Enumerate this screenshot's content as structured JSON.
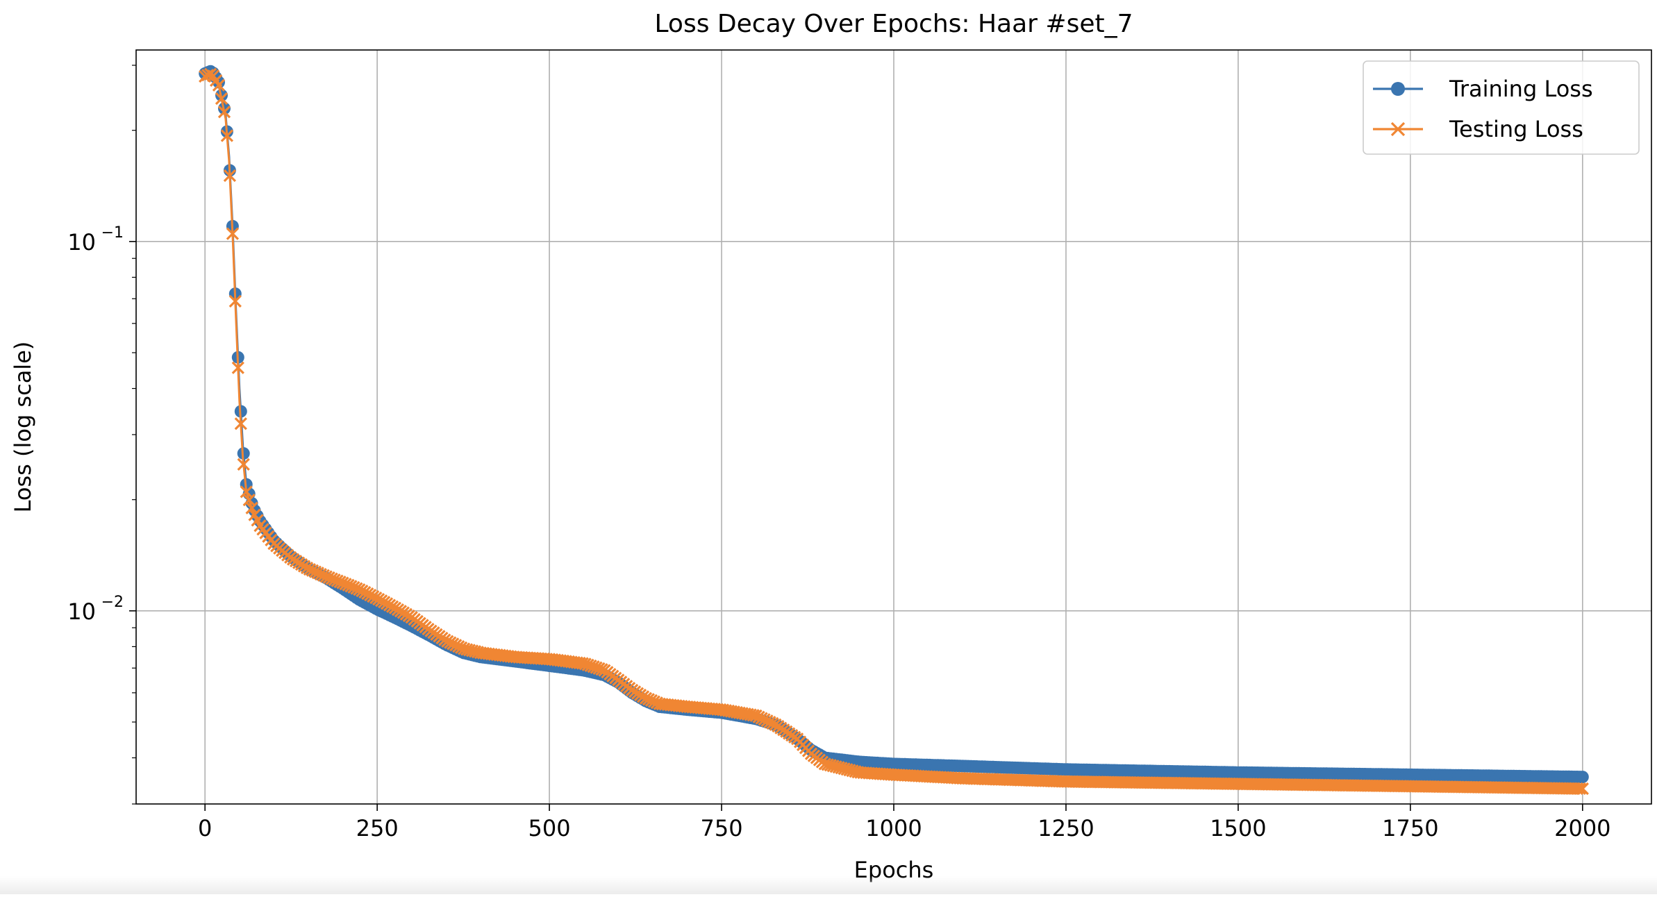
{
  "chart_data": {
    "type": "line",
    "title": "Loss Decay Over Epochs: Haar #set_7",
    "xlabel": "Epochs",
    "ylabel": "Loss (log scale)",
    "yscale": "log",
    "xlim": [
      -100,
      2100
    ],
    "ylim": [
      0.003,
      0.33
    ],
    "grid": true,
    "legend_position": "top-right",
    "x_ticks": [
      0,
      250,
      500,
      750,
      1000,
      1250,
      1500,
      1750,
      2000
    ],
    "x_tick_labels": [
      "0",
      "250",
      "500",
      "750",
      "1000",
      "1250",
      "1500",
      "1750",
      "2000"
    ],
    "y_major_ticks": [
      {
        "value": 0.1,
        "base": "10",
        "exponent": "−1"
      },
      {
        "value": 0.01,
        "base": "10",
        "exponent": "−2"
      }
    ],
    "series": [
      {
        "name": "Training Loss",
        "color": "#3a75b0",
        "marker": "circle",
        "points": [
          [
            0,
            0.285
          ],
          [
            10,
            0.29
          ],
          [
            20,
            0.27
          ],
          [
            30,
            0.22
          ],
          [
            35,
            0.17
          ],
          [
            40,
            0.11
          ],
          [
            45,
            0.065
          ],
          [
            50,
            0.04
          ],
          [
            55,
            0.028
          ],
          [
            60,
            0.022
          ],
          [
            70,
            0.019
          ],
          [
            80,
            0.0175
          ],
          [
            100,
            0.0155
          ],
          [
            125,
            0.014
          ],
          [
            150,
            0.013
          ],
          [
            175,
            0.0123
          ],
          [
            200,
            0.0115
          ],
          [
            225,
            0.0107
          ],
          [
            250,
            0.0101
          ],
          [
            275,
            0.0096
          ],
          [
            300,
            0.0091
          ],
          [
            325,
            0.0086
          ],
          [
            350,
            0.0081
          ],
          [
            375,
            0.0077
          ],
          [
            400,
            0.0075
          ],
          [
            450,
            0.0073
          ],
          [
            500,
            0.0071
          ],
          [
            550,
            0.0069
          ],
          [
            580,
            0.0067
          ],
          [
            600,
            0.0064
          ],
          [
            620,
            0.006
          ],
          [
            640,
            0.0057
          ],
          [
            660,
            0.0055
          ],
          [
            700,
            0.0054
          ],
          [
            750,
            0.0053
          ],
          [
            800,
            0.0051
          ],
          [
            830,
            0.0049
          ],
          [
            860,
            0.0045
          ],
          [
            880,
            0.0042
          ],
          [
            900,
            0.004
          ],
          [
            950,
            0.0039
          ],
          [
            1000,
            0.00385
          ],
          [
            1100,
            0.0038
          ],
          [
            1250,
            0.00372
          ],
          [
            1500,
            0.00365
          ],
          [
            1750,
            0.0036
          ],
          [
            2000,
            0.00355
          ]
        ]
      },
      {
        "name": "Testing Loss",
        "color": "#f08633",
        "marker": "x",
        "points": [
          [
            0,
            0.28
          ],
          [
            10,
            0.285
          ],
          [
            20,
            0.265
          ],
          [
            30,
            0.215
          ],
          [
            35,
            0.165
          ],
          [
            40,
            0.105
          ],
          [
            45,
            0.062
          ],
          [
            50,
            0.037
          ],
          [
            55,
            0.026
          ],
          [
            60,
            0.021
          ],
          [
            70,
            0.0185
          ],
          [
            80,
            0.017
          ],
          [
            100,
            0.0152
          ],
          [
            125,
            0.0139
          ],
          [
            150,
            0.013
          ],
          [
            175,
            0.0124
          ],
          [
            200,
            0.0119
          ],
          [
            225,
            0.0114
          ],
          [
            250,
            0.0108
          ],
          [
            275,
            0.0102
          ],
          [
            300,
            0.0096
          ],
          [
            325,
            0.0089
          ],
          [
            350,
            0.0083
          ],
          [
            375,
            0.0079
          ],
          [
            400,
            0.0077
          ],
          [
            450,
            0.0075
          ],
          [
            500,
            0.0074
          ],
          [
            550,
            0.0072
          ],
          [
            580,
            0.0069
          ],
          [
            600,
            0.0065
          ],
          [
            620,
            0.0061
          ],
          [
            640,
            0.0058
          ],
          [
            660,
            0.0056
          ],
          [
            700,
            0.0055
          ],
          [
            750,
            0.0054
          ],
          [
            800,
            0.0052
          ],
          [
            830,
            0.0049
          ],
          [
            860,
            0.0045
          ],
          [
            880,
            0.0041
          ],
          [
            900,
            0.00385
          ],
          [
            950,
            0.00365
          ],
          [
            1000,
            0.0036
          ],
          [
            1100,
            0.00352
          ],
          [
            1250,
            0.00345
          ],
          [
            1500,
            0.0034
          ],
          [
            1750,
            0.00335
          ],
          [
            2000,
            0.0033
          ]
        ]
      }
    ]
  }
}
